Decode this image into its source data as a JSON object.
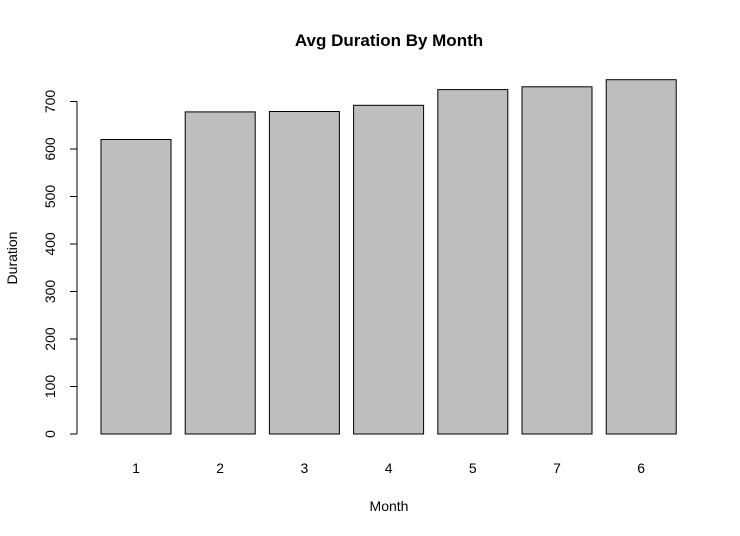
{
  "chart_data": {
    "type": "bar",
    "title": "Avg Duration By Month",
    "xlabel": "Month",
    "ylabel": "Duration",
    "categories": [
      "1",
      "2",
      "3",
      "4",
      "5",
      "7",
      "6"
    ],
    "values": [
      620,
      678,
      679,
      692,
      725,
      731,
      746
    ],
    "yticks": [
      0,
      100,
      200,
      300,
      400,
      500,
      600,
      700
    ],
    "ylim": [
      0,
      746
    ],
    "bar_color": "#bebebe",
    "bar_border_color": "#000000",
    "grid": false,
    "legend": "none"
  }
}
